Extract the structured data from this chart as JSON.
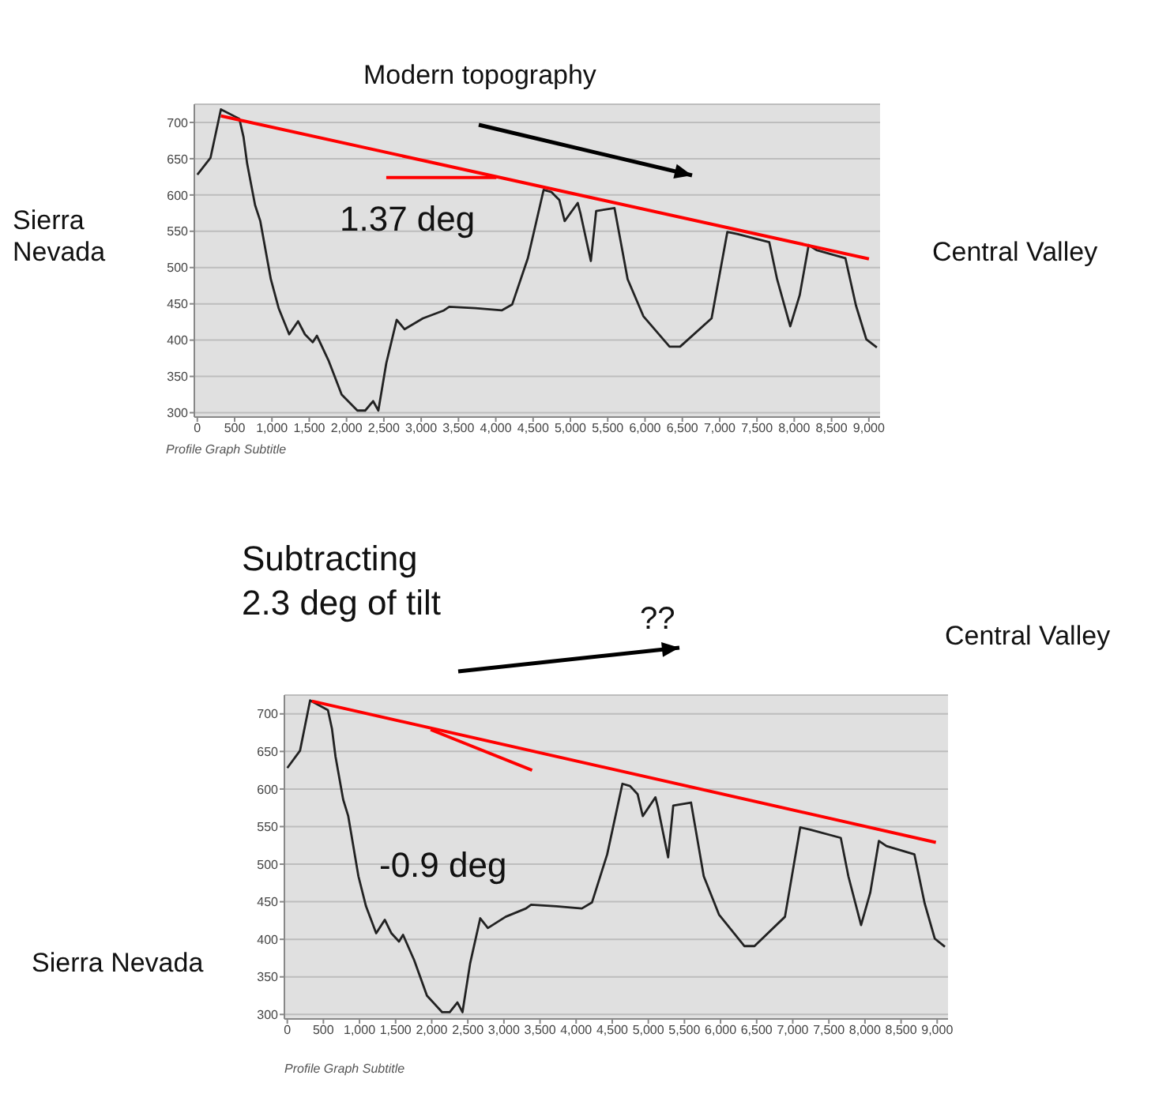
{
  "chart_data": [
    {
      "type": "line",
      "title": "Modern topography",
      "subtitle": "Profile Graph Subtitle",
      "annotations": [
        "1.37 deg",
        "Sierra Nevada",
        "Central Valley"
      ],
      "series": [
        {
          "color": "#222222",
          "x": [
            0,
            176,
            316,
            563,
            619,
            668,
            774,
            844,
            985,
            1090,
            1231,
            1350,
            1442,
            1547,
            1603,
            1758,
            1934,
            2145,
            2250,
            2356,
            2426,
            2532,
            2672,
            2778,
            3024,
            3305,
            3376,
            3727,
            4079,
            4219,
            4430,
            4641,
            4747,
            4852,
            4923,
            5098,
            5134,
            5274,
            5345,
            5591,
            5767,
            5978,
            6329,
            6470,
            6892,
            7103,
            7243,
            7665,
            7770,
            7946,
            8073,
            8193,
            8298,
            8685,
            8826,
            8966,
            9107
          ],
          "values": [
            628,
            651,
            718,
            705,
            680,
            643,
            586,
            564,
            484,
            444,
            408,
            426,
            408,
            397,
            406,
            372,
            325,
            303,
            303,
            316,
            303,
            368,
            428,
            415,
            430,
            441,
            446,
            444,
            441,
            449,
            513,
            607,
            604,
            593,
            564,
            589,
            575,
            509,
            578,
            582,
            484,
            433,
            391,
            391,
            430,
            549,
            546,
            535,
            484,
            419,
            462,
            531,
            524,
            513,
            448,
            401,
            390
          ]
        },
        {
          "color": "#ff0000",
          "x": [
            316,
            9001
          ],
          "values": [
            709,
            512
          ]
        },
        {
          "color": "#ff0000",
          "x": [
            2532,
            4008
          ],
          "values": [
            624,
            624
          ]
        }
      ],
      "xlim": [
        -40,
        9150
      ],
      "ylim": [
        294,
        725
      ],
      "xticks": [
        {
          "value": 0,
          "label": "0"
        },
        {
          "value": 500,
          "label": "500"
        },
        {
          "value": 1000,
          "label": "1,000"
        },
        {
          "value": 1500,
          "label": "1,500"
        },
        {
          "value": 2000,
          "label": "2,000"
        },
        {
          "value": 2500,
          "label": "2,500"
        },
        {
          "value": 3000,
          "label": "3,000"
        },
        {
          "value": 3500,
          "label": "3,500"
        },
        {
          "value": 4000,
          "label": "4,000"
        },
        {
          "value": 4500,
          "label": "4,500"
        },
        {
          "value": 5000,
          "label": "5,000"
        },
        {
          "value": 5500,
          "label": "5,500"
        },
        {
          "value": 6000,
          "label": "6,000"
        },
        {
          "value": 6500,
          "label": "6,500"
        },
        {
          "value": 7000,
          "label": "7,000"
        },
        {
          "value": 7500,
          "label": "7,500"
        },
        {
          "value": 8000,
          "label": "8,000"
        },
        {
          "value": 8500,
          "label": "8,500"
        },
        {
          "value": 9000,
          "label": "9,000"
        }
      ],
      "yticks": [
        300,
        350,
        400,
        450,
        500,
        550,
        600,
        650,
        700
      ],
      "grid": "y"
    },
    {
      "type": "line",
      "subtitle": "Profile Graph Subtitle",
      "annotations": [
        "Subtracting 2.3 deg of tilt",
        "??",
        "-0.9 deg",
        "Sierra Nevada",
        "Central Valley"
      ],
      "series": [
        {
          "color": "#222222",
          "x": [
            0,
            176,
            316,
            563,
            619,
            668,
            774,
            844,
            985,
            1090,
            1231,
            1350,
            1442,
            1547,
            1603,
            1758,
            1934,
            2145,
            2250,
            2356,
            2426,
            2532,
            2672,
            2778,
            3024,
            3305,
            3376,
            3727,
            4079,
            4219,
            4430,
            4641,
            4747,
            4852,
            4923,
            5098,
            5134,
            5274,
            5345,
            5591,
            5767,
            5978,
            6329,
            6470,
            6892,
            7103,
            7243,
            7665,
            7770,
            7946,
            8073,
            8193,
            8298,
            8685,
            8826,
            8966,
            9107
          ],
          "values": [
            628,
            651,
            718,
            705,
            680,
            643,
            586,
            564,
            484,
            444,
            408,
            426,
            408,
            397,
            406,
            372,
            325,
            303,
            303,
            316,
            303,
            368,
            428,
            415,
            430,
            441,
            446,
            444,
            441,
            449,
            513,
            607,
            604,
            593,
            564,
            589,
            575,
            509,
            578,
            582,
            484,
            433,
            391,
            391,
            430,
            549,
            546,
            535,
            484,
            419,
            462,
            531,
            524,
            513,
            448,
            401,
            390
          ]
        },
        {
          "color": "#ff0000",
          "x": [
            341,
            8982
          ],
          "values": [
            717,
            529
          ]
        },
        {
          "color": "#ff0000",
          "x": [
            1985,
            3390
          ],
          "values": [
            679,
            625
          ]
        }
      ],
      "xlim": [
        -40,
        9150
      ],
      "ylim": [
        294,
        725
      ],
      "xticks": [
        0,
        500,
        {
          "value": 1000,
          "label": "1,000"
        },
        {
          "value": 1500,
          "label": "1,500"
        },
        {
          "value": 2000,
          "label": "2,000"
        },
        {
          "value": 2500,
          "label": "2,500"
        },
        {
          "value": 3000,
          "label": "3,000"
        },
        {
          "value": 3500,
          "label": "3,500"
        },
        {
          "value": 4000,
          "label": "4,000"
        },
        {
          "value": 4500,
          "label": "4,500"
        },
        {
          "value": 5000,
          "label": "5,000"
        },
        {
          "value": 5500,
          "label": "5,500"
        },
        {
          "value": 6000,
          "label": "6,000"
        },
        {
          "value": 6500,
          "label": "6,500"
        },
        {
          "value": 7000,
          "label": "7,000"
        },
        {
          "value": 7500,
          "label": "7,500"
        },
        {
          "value": 8000,
          "label": "8,000"
        },
        {
          "value": 8500,
          "label": "8,500"
        },
        {
          "value": 9000,
          "label": "9,000"
        }
      ],
      "yticks": [
        300,
        350,
        400,
        450,
        500,
        550,
        600,
        650,
        700
      ],
      "grid": "y"
    }
  ]
}
